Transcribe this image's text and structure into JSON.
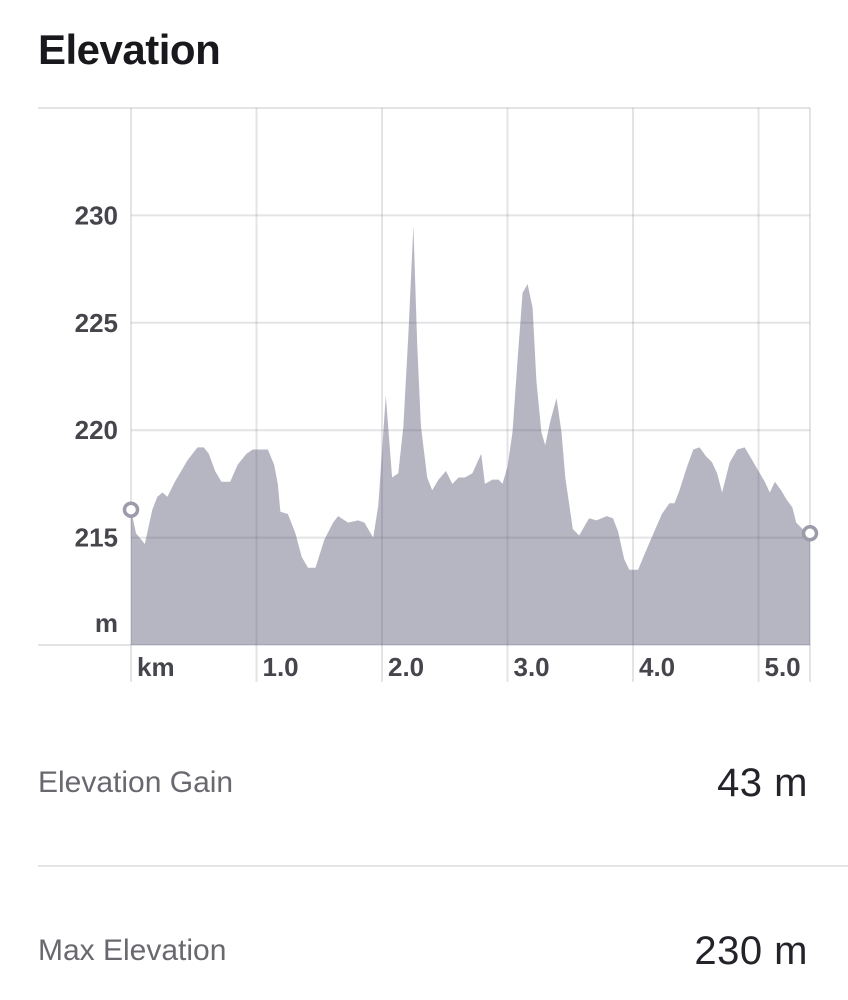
{
  "page": {
    "title": "Elevation"
  },
  "chart_data": {
    "type": "area",
    "title": "Elevation",
    "xlabel": "km",
    "ylabel": "m",
    "x_unit_label": "km",
    "y_unit_label": "m",
    "xlim": [
      0,
      5.41
    ],
    "ylim": [
      210,
      235
    ],
    "grid": true,
    "legend": "none",
    "area_color": "#b6b6c3",
    "grid_color": "rgba(71,71,94,0.15)",
    "marker_ring_color": "#9b9ba9",
    "x_ticks": [
      {
        "label": "km",
        "value": 0
      },
      {
        "label": "1.0",
        "value": 1.0
      },
      {
        "label": "2.0",
        "value": 2.0
      },
      {
        "label": "3.0",
        "value": 3.0
      },
      {
        "label": "4.0",
        "value": 4.0
      },
      {
        "label": "5.0",
        "value": 5.0
      }
    ],
    "y_ticks": [
      {
        "label": "230",
        "value": 230
      },
      {
        "label": "225",
        "value": 225
      },
      {
        "label": "220",
        "value": 220
      },
      {
        "label": "215",
        "value": 215
      }
    ],
    "points": [
      [
        0.0,
        216.3
      ],
      [
        0.04,
        215.2
      ],
      [
        0.11,
        214.7
      ],
      [
        0.17,
        216.3
      ],
      [
        0.21,
        216.9
      ],
      [
        0.25,
        217.1
      ],
      [
        0.29,
        216.9
      ],
      [
        0.35,
        217.6
      ],
      [
        0.45,
        218.6
      ],
      [
        0.53,
        219.2
      ],
      [
        0.58,
        219.2
      ],
      [
        0.62,
        218.9
      ],
      [
        0.67,
        218.1
      ],
      [
        0.72,
        217.6
      ],
      [
        0.79,
        217.6
      ],
      [
        0.85,
        218.4
      ],
      [
        0.92,
        218.9
      ],
      [
        0.97,
        219.1
      ],
      [
        1.09,
        219.1
      ],
      [
        1.14,
        218.4
      ],
      [
        1.17,
        217.5
      ],
      [
        1.19,
        216.2
      ],
      [
        1.25,
        216.1
      ],
      [
        1.31,
        215.2
      ],
      [
        1.36,
        214.1
      ],
      [
        1.41,
        213.6
      ],
      [
        1.47,
        213.6
      ],
      [
        1.54,
        214.9
      ],
      [
        1.61,
        215.7
      ],
      [
        1.65,
        216.0
      ],
      [
        1.73,
        215.7
      ],
      [
        1.81,
        215.8
      ],
      [
        1.86,
        215.7
      ],
      [
        1.93,
        215.0
      ],
      [
        1.97,
        216.5
      ],
      [
        2.03,
        221.6
      ],
      [
        2.08,
        217.8
      ],
      [
        2.13,
        218.0
      ],
      [
        2.17,
        220.2
      ],
      [
        2.21,
        224.5
      ],
      [
        2.25,
        229.5
      ],
      [
        2.28,
        224.0
      ],
      [
        2.31,
        220.2
      ],
      [
        2.36,
        217.8
      ],
      [
        2.4,
        217.2
      ],
      [
        2.45,
        217.7
      ],
      [
        2.51,
        218.1
      ],
      [
        2.56,
        217.5
      ],
      [
        2.61,
        217.8
      ],
      [
        2.66,
        217.8
      ],
      [
        2.72,
        218.0
      ],
      [
        2.79,
        218.9
      ],
      [
        2.82,
        217.5
      ],
      [
        2.88,
        217.7
      ],
      [
        2.93,
        217.7
      ],
      [
        2.96,
        217.5
      ],
      [
        3.0,
        218.3
      ],
      [
        3.04,
        219.9
      ],
      [
        3.08,
        223.3
      ],
      [
        3.12,
        226.4
      ],
      [
        3.16,
        226.8
      ],
      [
        3.2,
        225.7
      ],
      [
        3.23,
        222.3
      ],
      [
        3.27,
        219.9
      ],
      [
        3.3,
        219.3
      ],
      [
        3.34,
        220.4
      ],
      [
        3.39,
        221.5
      ],
      [
        3.43,
        219.9
      ],
      [
        3.46,
        217.8
      ],
      [
        3.52,
        215.4
      ],
      [
        3.57,
        215.1
      ],
      [
        3.65,
        215.9
      ],
      [
        3.71,
        215.8
      ],
      [
        3.79,
        216.0
      ],
      [
        3.84,
        215.9
      ],
      [
        3.88,
        215.3
      ],
      [
        3.93,
        214.0
      ],
      [
        3.97,
        213.5
      ],
      [
        4.04,
        213.5
      ],
      [
        4.09,
        214.2
      ],
      [
        4.17,
        215.3
      ],
      [
        4.23,
        216.1
      ],
      [
        4.29,
        216.6
      ],
      [
        4.33,
        216.6
      ],
      [
        4.37,
        217.2
      ],
      [
        4.43,
        218.3
      ],
      [
        4.48,
        219.1
      ],
      [
        4.53,
        219.2
      ],
      [
        4.58,
        218.8
      ],
      [
        4.63,
        218.5
      ],
      [
        4.67,
        218.0
      ],
      [
        4.71,
        217.1
      ],
      [
        4.77,
        218.5
      ],
      [
        4.83,
        219.1
      ],
      [
        4.89,
        219.2
      ],
      [
        4.94,
        218.7
      ],
      [
        4.98,
        218.3
      ],
      [
        5.05,
        217.6
      ],
      [
        5.09,
        217.1
      ],
      [
        5.13,
        217.6
      ],
      [
        5.18,
        217.2
      ],
      [
        5.22,
        216.8
      ],
      [
        5.27,
        216.4
      ],
      [
        5.3,
        215.7
      ],
      [
        5.35,
        215.4
      ],
      [
        5.41,
        215.2
      ]
    ],
    "start_marker": {
      "x": 0.0,
      "y": 216.3
    },
    "end_marker": {
      "x": 5.41,
      "y": 215.2
    }
  },
  "stats": {
    "rows": [
      {
        "label": "Elevation Gain",
        "value": "43 m"
      },
      {
        "label": "Max Elevation",
        "value": "230 m"
      }
    ]
  }
}
